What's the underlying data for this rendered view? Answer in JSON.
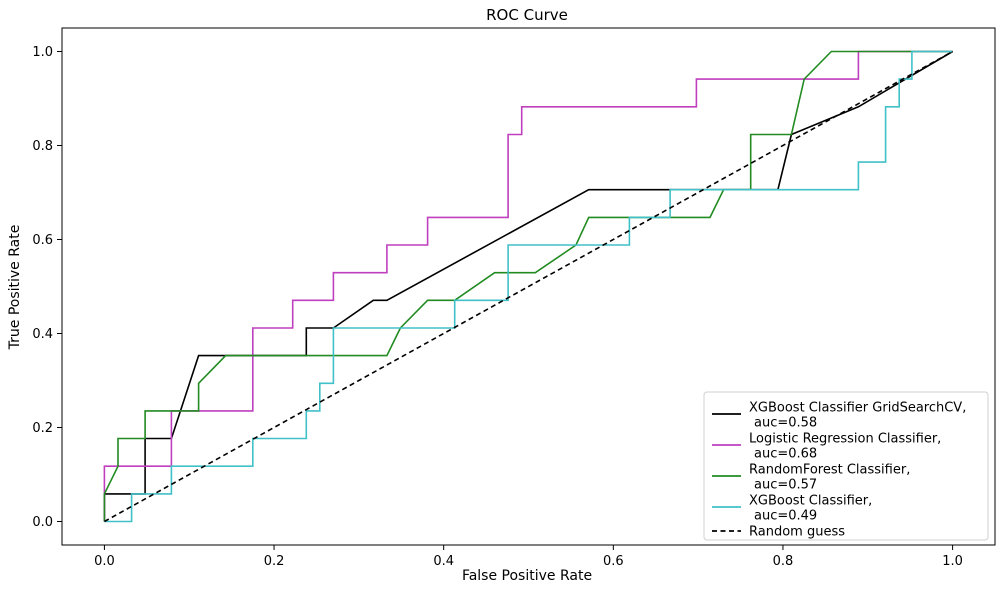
{
  "chart_data": {
    "type": "line",
    "title": "ROC Curve",
    "xlabel": "False Positive Rate",
    "ylabel": "True Positive Rate",
    "xlim": [
      -0.05,
      1.05
    ],
    "ylim": [
      -0.05,
      1.05
    ],
    "x_ticks": [
      "0.0",
      "0.2",
      "0.4",
      "0.6",
      "0.8",
      "1.0"
    ],
    "y_ticks": [
      "0.0",
      "0.2",
      "0.4",
      "0.6",
      "0.8",
      "1.0"
    ],
    "grid": false,
    "legend_position": "lower-right",
    "series": [
      {
        "name": "XGBoost Classifier GridSearchCV,",
        "auc_label": "auc=0.58",
        "color": "#000000",
        "dash": "solid",
        "points": [
          [
            0,
            0
          ],
          [
            0,
            0.0588
          ],
          [
            0.048,
            0.0588
          ],
          [
            0.048,
            0.1765
          ],
          [
            0.079,
            0.1765
          ],
          [
            0.111,
            0.3529
          ],
          [
            0.238,
            0.3529
          ],
          [
            0.238,
            0.4118
          ],
          [
            0.27,
            0.4118
          ],
          [
            0.317,
            0.4706
          ],
          [
            0.333,
            0.4706
          ],
          [
            0.571,
            0.7059
          ],
          [
            0.794,
            0.7059
          ],
          [
            0.81,
            0.8235
          ],
          [
            0.889,
            0.8824
          ],
          [
            1.0,
            1.0
          ]
        ]
      },
      {
        "name": "Logistic Regression Classifier,",
        "auc_label": "auc=0.68",
        "color": "#bf3fbf",
        "dash": "solid",
        "points": [
          [
            0,
            0
          ],
          [
            0,
            0.1176
          ],
          [
            0.079,
            0.1176
          ],
          [
            0.079,
            0.2353
          ],
          [
            0.175,
            0.2353
          ],
          [
            0.175,
            0.4118
          ],
          [
            0.222,
            0.4118
          ],
          [
            0.222,
            0.4706
          ],
          [
            0.27,
            0.4706
          ],
          [
            0.27,
            0.5294
          ],
          [
            0.333,
            0.5294
          ],
          [
            0.333,
            0.5882
          ],
          [
            0.381,
            0.5882
          ],
          [
            0.381,
            0.6471
          ],
          [
            0.476,
            0.6471
          ],
          [
            0.476,
            0.8235
          ],
          [
            0.492,
            0.8235
          ],
          [
            0.492,
            0.8824
          ],
          [
            0.698,
            0.8824
          ],
          [
            0.698,
            0.9412
          ],
          [
            0.889,
            0.9412
          ],
          [
            0.889,
            1.0
          ],
          [
            1.0,
            1.0
          ]
        ]
      },
      {
        "name": "RandomForest Classifier,",
        "auc_label": "auc=0.57",
        "color": "#228b22",
        "dash": "solid",
        "points": [
          [
            0,
            0
          ],
          [
            0,
            0.0588
          ],
          [
            0.016,
            0.1176
          ],
          [
            0.016,
            0.1765
          ],
          [
            0.048,
            0.1765
          ],
          [
            0.048,
            0.2353
          ],
          [
            0.111,
            0.2353
          ],
          [
            0.111,
            0.2941
          ],
          [
            0.143,
            0.3529
          ],
          [
            0.333,
            0.3529
          ],
          [
            0.349,
            0.4118
          ],
          [
            0.381,
            0.4706
          ],
          [
            0.413,
            0.4706
          ],
          [
            0.46,
            0.5294
          ],
          [
            0.508,
            0.5294
          ],
          [
            0.556,
            0.5882
          ],
          [
            0.571,
            0.6471
          ],
          [
            0.714,
            0.6471
          ],
          [
            0.73,
            0.7059
          ],
          [
            0.762,
            0.7059
          ],
          [
            0.762,
            0.8235
          ],
          [
            0.81,
            0.8235
          ],
          [
            0.825,
            0.9412
          ],
          [
            0.857,
            1.0
          ],
          [
            1.0,
            1.0
          ]
        ]
      },
      {
        "name": "XGBoost Classifier,",
        "auc_label": "auc=0.49",
        "color": "#40c0c8",
        "dash": "solid",
        "points": [
          [
            0,
            0
          ],
          [
            0.032,
            0
          ],
          [
            0.032,
            0.0588
          ],
          [
            0.079,
            0.0588
          ],
          [
            0.079,
            0.1176
          ],
          [
            0.175,
            0.1176
          ],
          [
            0.175,
            0.1765
          ],
          [
            0.238,
            0.1765
          ],
          [
            0.238,
            0.2353
          ],
          [
            0.254,
            0.2353
          ],
          [
            0.254,
            0.2941
          ],
          [
            0.27,
            0.2941
          ],
          [
            0.27,
            0.4118
          ],
          [
            0.413,
            0.4118
          ],
          [
            0.413,
            0.4706
          ],
          [
            0.476,
            0.4706
          ],
          [
            0.476,
            0.5882
          ],
          [
            0.619,
            0.5882
          ],
          [
            0.619,
            0.6471
          ],
          [
            0.667,
            0.6471
          ],
          [
            0.667,
            0.7059
          ],
          [
            0.889,
            0.7059
          ],
          [
            0.889,
            0.7647
          ],
          [
            0.921,
            0.7647
          ],
          [
            0.921,
            0.8824
          ],
          [
            0.937,
            0.8824
          ],
          [
            0.937,
            0.9412
          ],
          [
            0.952,
            0.9412
          ],
          [
            0.952,
            1.0
          ],
          [
            1.0,
            1.0
          ]
        ]
      },
      {
        "name": "Random guess",
        "auc_label": "",
        "color": "#000000",
        "dash": "dashed",
        "points": [
          [
            0,
            0
          ],
          [
            1,
            1
          ]
        ]
      }
    ]
  }
}
